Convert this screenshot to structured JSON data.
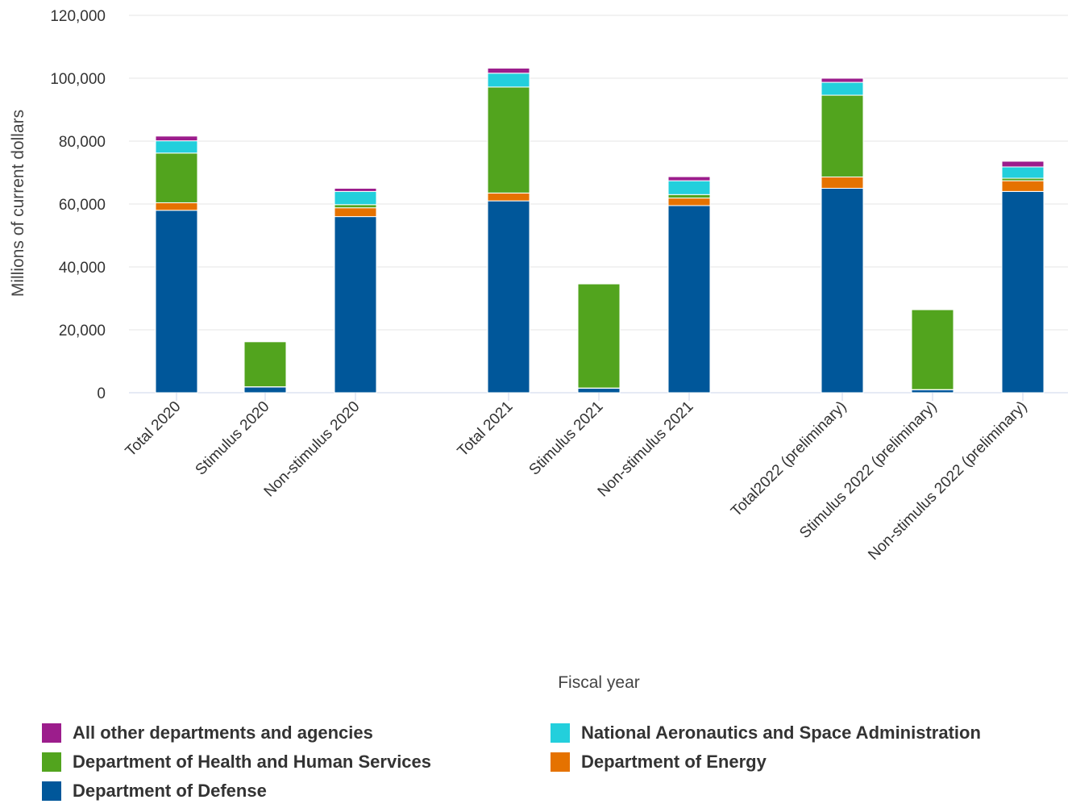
{
  "chart_data": {
    "type": "bar",
    "stacked": true,
    "xlabel": "Fiscal year",
    "ylabel": "Millions of current dollars",
    "ylim": [
      0,
      120000
    ],
    "yticks": [
      0,
      20000,
      40000,
      60000,
      80000,
      100000,
      120000
    ],
    "ytick_labels": [
      "0",
      "20,000",
      "40,000",
      "60,000",
      "80,000",
      "100,000",
      "120,000"
    ],
    "grid": true,
    "legend_position": "bottom",
    "categories": [
      "Total 2020",
      "Stimulus 2020",
      "Non-stimulus 2020",
      "Total 2021",
      "Stimulus 2021",
      "Non-stimulus 2021",
      "Total2022 (preliminary)",
      "Stimulus 2022 (preliminary)",
      "Non-stimulus 2022 (preliminary)"
    ],
    "series": [
      {
        "name": "Department of Defense",
        "color": "#00579a",
        "values": [
          58000,
          1800,
          56000,
          61000,
          1400,
          59500,
          65000,
          900,
          64000
        ]
      },
      {
        "name": "Department of Energy",
        "color": "#e57200",
        "values": [
          2400,
          100,
          2800,
          2500,
          100,
          2400,
          3600,
          100,
          3400
        ]
      },
      {
        "name": "Department of Health and Human Services",
        "color": "#52a41e",
        "values": [
          15800,
          14300,
          1000,
          33700,
          33100,
          1100,
          26000,
          25400,
          800
        ]
      },
      {
        "name": "National Aeronautics and Space Administration",
        "color": "#23cfdc",
        "values": [
          3900,
          0,
          4200,
          4400,
          0,
          4400,
          4100,
          0,
          3600
        ]
      },
      {
        "name": "All other departments and agencies",
        "color": "#9c1d8c",
        "values": [
          1500,
          0,
          1000,
          1600,
          0,
          1300,
          1300,
          0,
          1800
        ]
      }
    ],
    "legend_order": [
      "All other departments and agencies",
      "National Aeronautics and Space Administration",
      "Department of Health and Human Services",
      "Department of Energy",
      "Department of Defense"
    ]
  }
}
